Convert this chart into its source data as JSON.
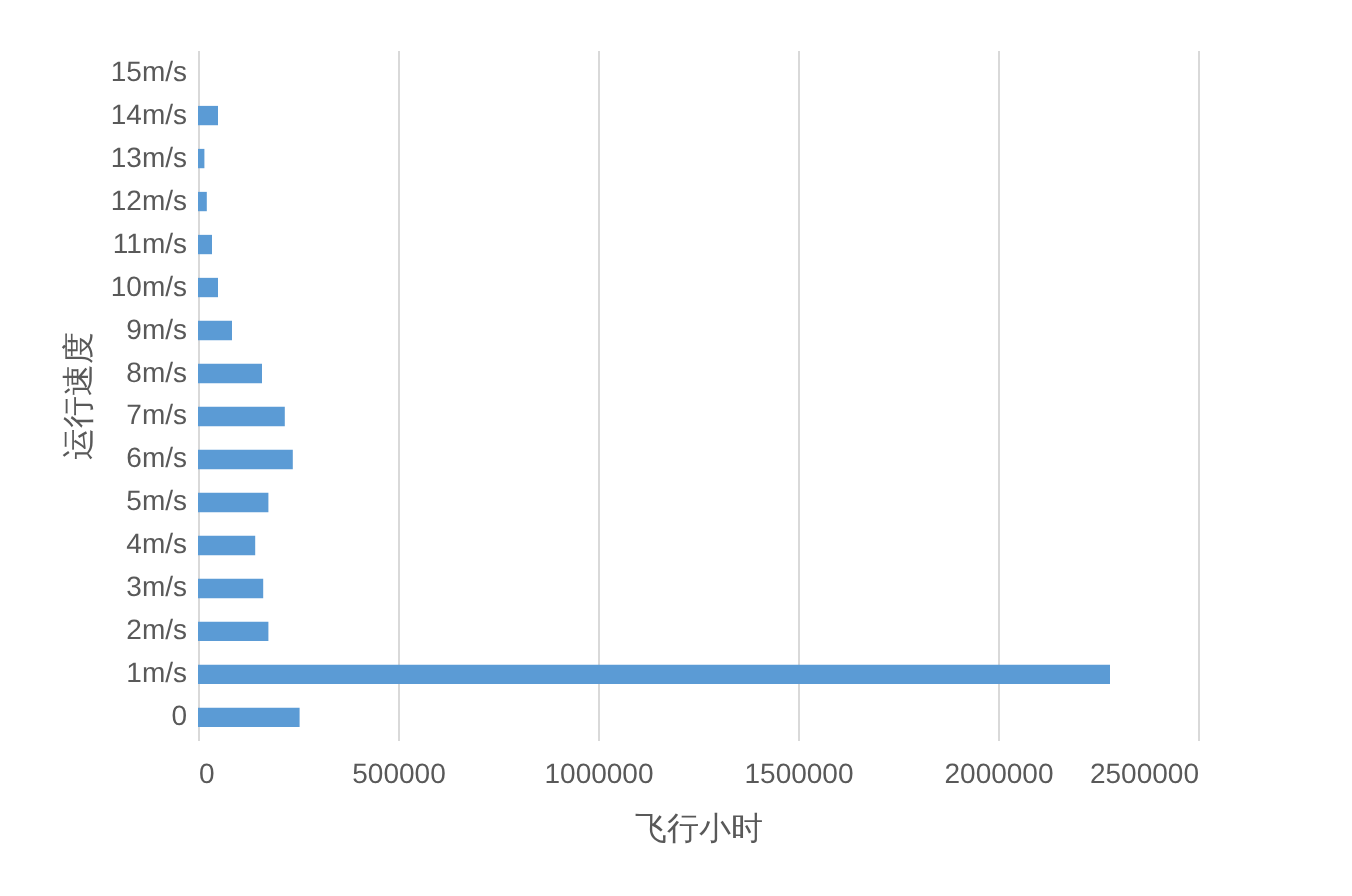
{
  "chart_data": {
    "type": "bar",
    "orientation": "horizontal",
    "xlabel": "飞行小时",
    "ylabel": "运行速度",
    "categories": [
      "15m/s",
      "14m/s",
      "13m/s",
      "12m/s",
      "11m/s",
      "10m/s",
      "9m/s",
      "8m/s",
      "7m/s",
      "6m/s",
      "5m/s",
      "4m/s",
      "3m/s",
      "2m/s",
      "1m/s",
      "0"
    ],
    "values": [
      0,
      50000,
      16000,
      22000,
      35000,
      50000,
      85000,
      160000,
      217000,
      237000,
      176000,
      143000,
      163000,
      176000,
      2280000,
      254000
    ],
    "color": "#5b9bd5",
    "xlim": [
      0,
      2500000
    ],
    "xticks": [
      0,
      500000,
      1000000,
      1500000,
      2000000,
      2500000
    ],
    "grid": "x"
  }
}
